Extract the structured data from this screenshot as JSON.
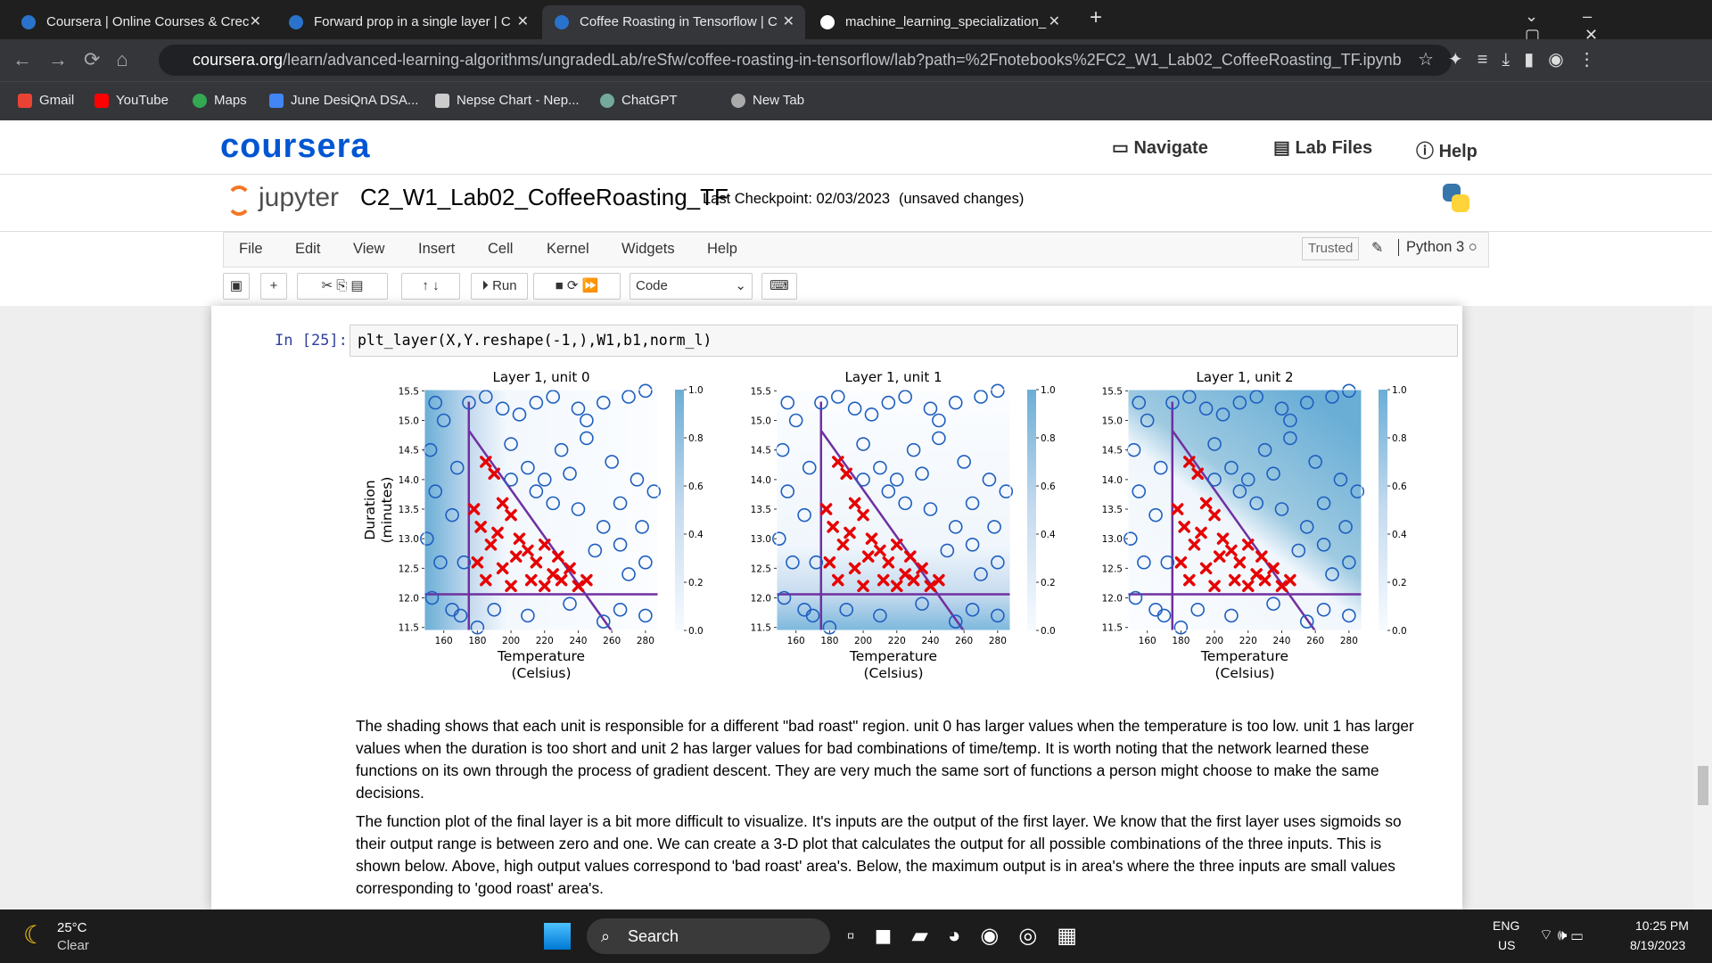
{
  "browser": {
    "tabs": [
      "Coursera | Online Courses & Crec",
      "Forward prop in a single layer | C",
      "Coffee Roasting in Tensorflow | C",
      "machine_learning_specialization_"
    ],
    "url_host": "coursera.org",
    "url_path": "/learn/advanced-learning-algorithms/ungradedLab/reSfw/coffee-roasting-in-tensorflow/lab?path=%2Fnotebooks%2FC2_W1_Lab02_CoffeeRoasting_TF.ipynb",
    "bookmarks": [
      "Gmail",
      "YouTube",
      "Maps",
      "June DesiQnA DSA...",
      "Nepse Chart - Nep...",
      "ChatGPT",
      "New Tab"
    ]
  },
  "coursera": {
    "logo": "coursera",
    "nav": [
      "Navigate",
      "Lab Files",
      "Help"
    ]
  },
  "jupyter": {
    "logo": "jupyter",
    "notebook": "C2_W1_Lab02_CoffeeRoasting_TF",
    "checkpoint": "Last Checkpoint: 02/03/2023",
    "status": "(unsaved changes)",
    "menu": [
      "File",
      "Edit",
      "View",
      "Insert",
      "Cell",
      "Kernel",
      "Widgets",
      "Help"
    ],
    "trusted": "Trusted",
    "kernel": "Python 3",
    "run": "Run",
    "cell_type": "Code"
  },
  "cell": {
    "prompt": "In [25]:",
    "code": "plt_layer(X,Y.reshape(-1,),W1,b1,norm_l)"
  },
  "samples": {
    "good": {
      "x": [
        155,
        160,
        152,
        155,
        150,
        158,
        153,
        165,
        170,
        172,
        165,
        168,
        175,
        185,
        195,
        205,
        215,
        225,
        240,
        255,
        270,
        280,
        200,
        210,
        220,
        230,
        245,
        260,
        275,
        285,
        240,
        255,
        265,
        280,
        270,
        250,
        265,
        280,
        255,
        235,
        210,
        190,
        180,
        225,
        235,
        215,
        200,
        265,
        278,
        245
      ],
      "y": [
        15.3,
        15.0,
        14.5,
        13.8,
        13.0,
        12.6,
        12.0,
        11.8,
        11.7,
        12.6,
        13.4,
        14.2,
        15.3,
        15.4,
        15.2,
        15.1,
        15.3,
        15.4,
        15.2,
        15.3,
        15.4,
        15.5,
        14.6,
        14.2,
        14.0,
        14.5,
        14.7,
        14.3,
        14.0,
        13.8,
        13.5,
        13.2,
        12.9,
        12.6,
        12.4,
        12.8,
        11.8,
        11.7,
        11.6,
        11.9,
        11.7,
        11.8,
        11.5,
        13.6,
        14.1,
        13.8,
        14.0,
        13.6,
        13.2,
        15.0
      ]
    },
    "bad": {
      "x": [
        185,
        190,
        178,
        182,
        195,
        200,
        188,
        205,
        210,
        215,
        195,
        220,
        225,
        230,
        235,
        240,
        245,
        185,
        200,
        212,
        220,
        180,
        203,
        228,
        192
      ],
      "y": [
        14.3,
        14.1,
        13.5,
        13.2,
        13.6,
        13.4,
        12.9,
        13.0,
        12.8,
        12.6,
        12.5,
        12.9,
        12.4,
        12.3,
        12.5,
        12.2,
        12.3,
        12.3,
        12.2,
        12.3,
        12.2,
        12.6,
        12.7,
        12.7,
        13.1
      ]
    }
  },
  "chart_data": [
    {
      "type": "scatter",
      "title": "Layer 1, unit 0",
      "xlabel": [
        "Temperature",
        "(Celsius)"
      ],
      "ylabel": [
        "Duration",
        "(minutes)"
      ],
      "xlim": [
        148.5,
        287.5
      ],
      "ylim": [
        11.45,
        15.52
      ],
      "xticks": [
        160,
        180,
        200,
        220,
        240,
        260,
        280
      ],
      "yticks": [
        11.5,
        {
          "value": 12,
          "label": "12.0"
        },
        12.5,
        {
          "value": 13,
          "label": "13.0"
        },
        13.5,
        {
          "value": 14,
          "label": "14.0"
        },
        14.5,
        {
          "value": 15,
          "label": "15.0"
        },
        15.5
      ],
      "clim": [
        0,
        1
      ],
      "cticks": [
        {
          "value": 0,
          "label": "0.0"
        },
        0.2,
        0.4,
        0.6,
        0.8,
        {
          "value": 1,
          "label": "1.0"
        }
      ]
    },
    {
      "type": "scatter",
      "title": "Layer 1, unit 1",
      "xlabel": [
        "Temperature",
        "(Celsius)"
      ],
      "xlim": [
        148.5,
        287.5
      ],
      "ylim": [
        11.45,
        15.52
      ],
      "xticks": [
        160,
        180,
        200,
        220,
        240,
        260,
        280
      ],
      "yticks": [
        11.5,
        {
          "value": 12,
          "label": "12.0"
        },
        12.5,
        {
          "value": 13,
          "label": "13.0"
        },
        13.5,
        {
          "value": 14,
          "label": "14.0"
        },
        14.5,
        {
          "value": 15,
          "label": "15.0"
        },
        15.5
      ],
      "clim": [
        0,
        1
      ],
      "cticks": [
        {
          "value": 0,
          "label": "0.0"
        },
        0.2,
        0.4,
        0.6,
        0.8,
        {
          "value": 1,
          "label": "1.0"
        }
      ]
    },
    {
      "type": "scatter",
      "title": "Layer 1, unit 2",
      "xlabel": [
        "Temperature",
        "(Celsius)"
      ],
      "xlim": [
        148.5,
        287.5
      ],
      "ylim": [
        11.45,
        15.52
      ],
      "xticks": [
        160,
        180,
        200,
        220,
        240,
        260,
        280
      ],
      "yticks": [
        11.5,
        {
          "value": 12,
          "label": "12.0"
        },
        12.5,
        {
          "value": 13,
          "label": "13.0"
        },
        13.5,
        {
          "value": 14,
          "label": "14.0"
        },
        14.5,
        {
          "value": 15,
          "label": "15.0"
        },
        15.5
      ],
      "clim": [
        0,
        1
      ],
      "cticks": [
        {
          "value": 0,
          "label": "0.0"
        },
        0.2,
        0.4,
        0.6,
        0.8,
        {
          "value": 1,
          "label": "1.0"
        }
      ]
    }
  ],
  "markdown": [
    "The shading shows that each unit is responsible for a different \"bad roast\" region. unit 0 has larger values when the temperature is too low. unit 1 has larger values when the duration is too short and unit 2 has larger values for bad combinations of time/temp. It is worth noting that the network learned these functions on its own through the process of gradient descent. They are very much the same sort of functions a person might choose to make the same decisions.",
    "The function plot of the final layer is a bit more difficult to visualize. It's inputs are the output of the first layer. We know that the first layer uses sigmoids so their output range is between zero and one. We can create a 3-D plot that calculates the output for all possible combinations of the three inputs. This is shown below. Above, high output values correspond to 'bad roast' area's. Below, the maximum output is in area's where the three inputs are small values corresponding to 'good roast' area's."
  ],
  "taskbar": {
    "temp": "25°C",
    "weather": "Clear",
    "search": "Search",
    "lang": "ENG",
    "region": "US",
    "time": "10:25 PM",
    "date": "8/19/2023"
  }
}
